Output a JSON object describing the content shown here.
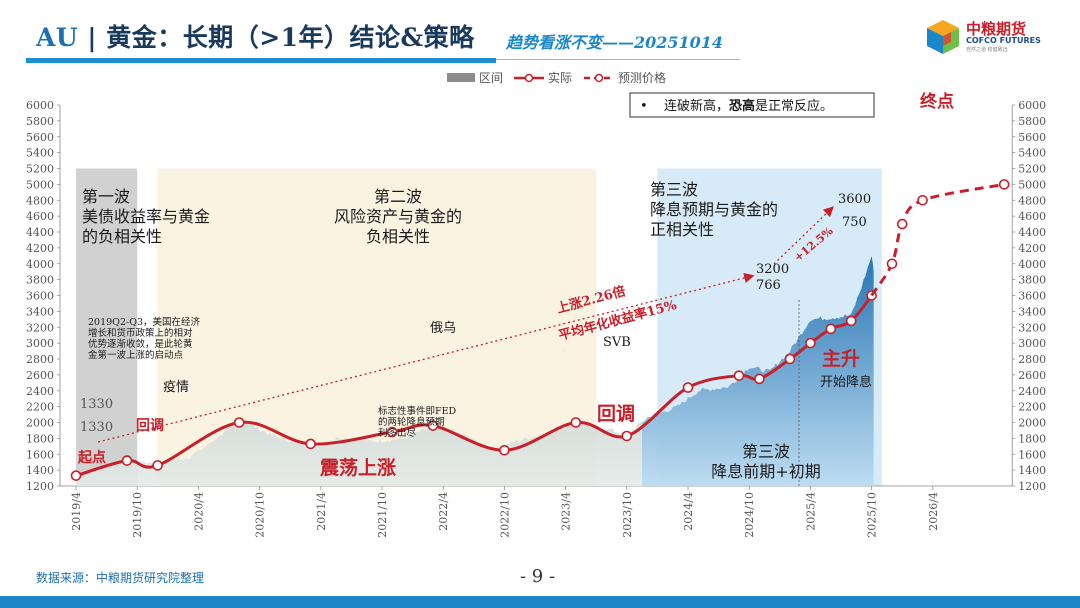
{
  "header": {
    "title_prefix": "AU",
    "title_sep": " | ",
    "title_main": "黄金：长期（>1年）结论&策略",
    "subtitle": "趋势看涨不变——20251014",
    "logo_name": "中粮期货",
    "logo_en": "COFCO FUTURES",
    "logo_slogan": "自然之道  稳健致远"
  },
  "footer": {
    "source": "数据来源：中粮期货研究院整理",
    "page": "- 9 -"
  },
  "colors": {
    "accent": "#1c87c8",
    "red": "#c8202a",
    "area_blue": "#3a8fc8",
    "area_gray": "#b9c4c0",
    "band_gray": "#c9c9c9",
    "band_cream": "#fbf3e2",
    "band_blue": "#d6ebf7"
  },
  "chart_data": {
    "type": "line",
    "legend": [
      "区间",
      "实际",
      "预测价格"
    ],
    "legend_position": "top",
    "ylim": [
      1200,
      6000
    ],
    "y_step": 200,
    "x_ticks": [
      "2019/4",
      "2019/10",
      "2020/4",
      "2020/10",
      "2021/4",
      "2021/10",
      "2022/4",
      "2022/10",
      "2023/4",
      "2023/10",
      "2024/4",
      "2024/10",
      "2025/4",
      "2025/10",
      "2026/4"
    ],
    "note_box": "连破新高，恐高是正常反应。",
    "note_box_bold": "恐高",
    "bands": [
      {
        "name": "第一波",
        "from": "2019/4",
        "to": "2019/10",
        "lines": [
          "第一波",
          "美债收益率与黄金",
          "的负相关性"
        ]
      },
      {
        "name": "第二波",
        "from": "2019/12",
        "to": "2023/7",
        "lines": [
          "第二波",
          "风险资产与黄金的",
          "负相关性"
        ]
      },
      {
        "name": "第三波",
        "from": "2024/1",
        "to": "2025/11",
        "lines": [
          "第三波",
          "降息预期与黄金的",
          "正相关性"
        ]
      }
    ],
    "series": [
      {
        "name": "实际",
        "points": [
          [
            "2019/4",
            1330
          ],
          [
            "2019/9",
            1520
          ],
          [
            "2019/12",
            1460
          ],
          [
            "2020/8",
            2000
          ],
          [
            "2021/3",
            1730
          ],
          [
            "2021/11",
            1880
          ],
          [
            "2022/3",
            1960
          ],
          [
            "2022/10",
            1650
          ],
          [
            "2023/5",
            2000
          ],
          [
            "2023/10",
            1830
          ],
          [
            "2024/4",
            2440
          ],
          [
            "2024/9",
            2590
          ],
          [
            "2024/11",
            2550
          ],
          [
            "2025/2",
            2800
          ],
          [
            "2025/4",
            3000
          ],
          [
            "2025/6",
            3180
          ],
          [
            "2025/8",
            3280
          ],
          [
            "2025/10",
            3600
          ]
        ]
      },
      {
        "name": "预测价格",
        "points": [
          [
            "2025/10",
            3600
          ],
          [
            "2025/12",
            4000
          ],
          [
            "2026/1",
            4500
          ],
          [
            "2026/3",
            4800
          ],
          [
            "2026/11",
            5000
          ]
        ]
      }
    ],
    "area_series": {
      "name": "gold-price",
      "points": [
        [
          "2019/4",
          1300
        ],
        [
          "2019/6",
          1390
        ],
        [
          "2019/9",
          1510
        ],
        [
          "2019/12",
          1490
        ],
        [
          "2020/3",
          1560
        ],
        [
          "2020/5",
          1720
        ],
        [
          "2020/8",
          2050
        ],
        [
          "2020/11",
          1850
        ],
        [
          "2021/3",
          1700
        ],
        [
          "2021/6",
          1820
        ],
        [
          "2021/9",
          1760
        ],
        [
          "2021/12",
          1800
        ],
        [
          "2022/3",
          1950
        ],
        [
          "2022/6",
          1840
        ],
        [
          "2022/9",
          1650
        ],
        [
          "2022/11",
          1760
        ],
        [
          "2023/2",
          1860
        ],
        [
          "2023/5",
          2000
        ],
        [
          "2023/8",
          1920
        ],
        [
          "2023/10",
          1850
        ],
        [
          "2023/12",
          2060
        ],
        [
          "2024/3",
          2200
        ],
        [
          "2024/5",
          2400
        ],
        [
          "2024/8",
          2450
        ],
        [
          "2024/10",
          2700
        ],
        [
          "2024/12",
          2640
        ],
        [
          "2025/2",
          2900
        ],
        [
          "2025/4",
          3300
        ],
        [
          "2025/6",
          3320
        ],
        [
          "2025/8",
          3350
        ],
        [
          "2025/9",
          3700
        ],
        [
          "2025/10",
          4100
        ],
        [
          "2025/10.2",
          3900
        ]
      ]
    },
    "annotations": [
      {
        "id": "start",
        "text": "起点",
        "style": "red"
      },
      {
        "id": "pullback-1",
        "text": "回调",
        "style": "red"
      },
      {
        "id": "pullback-2",
        "text": "回调",
        "style": "red-large"
      },
      {
        "id": "range-rise",
        "text": "震荡上涨",
        "style": "red-large"
      },
      {
        "id": "main-rise",
        "text": "主升",
        "style": "red-large"
      },
      {
        "id": "end",
        "text": "终点",
        "style": "red"
      },
      {
        "id": "start-cut",
        "text": "开始降息",
        "style": "dark"
      },
      {
        "id": "wave3-lower",
        "lines": [
          "第三波",
          "降息前期+初期"
        ],
        "style": "dark"
      },
      {
        "id": "rise-226",
        "text": "上涨2.26倍",
        "style": "red-rot"
      },
      {
        "id": "avg-yield",
        "text": "平均年化收益率15%",
        "style": "red-rot"
      },
      {
        "id": "plus-125",
        "text": "+12.5%",
        "style": "red-rot-small"
      },
      {
        "id": "q2q3-note",
        "lines": [
          "2019Q2-Q3，美国在经济",
          "增长和货币政策上的相对",
          "优势逐渐收敛，是此轮黄",
          "金第一波上涨的启动点"
        ],
        "style": "small"
      },
      {
        "id": "epidemic",
        "text": "疫情",
        "style": "dark"
      },
      {
        "id": "russia-ukraine",
        "text": "俄乌",
        "style": "dark"
      },
      {
        "id": "svb",
        "text": "SVB",
        "style": "dark"
      },
      {
        "id": "fed-note",
        "lines": [
          "标志性事件即FED",
          "的两轮降息预期",
          "利多出尽"
        ],
        "style": "small"
      },
      {
        "id": "v1330a",
        "text": "1330",
        "style": "gray"
      },
      {
        "id": "v1330b",
        "text": "1330",
        "style": "gray"
      },
      {
        "id": "v3200",
        "text": "3200",
        "style": "dark"
      },
      {
        "id": "v766",
        "text": "766",
        "style": "dark"
      },
      {
        "id": "v3600",
        "text": "3600",
        "style": "dark"
      },
      {
        "id": "v750",
        "text": "750",
        "style": "dark"
      }
    ]
  }
}
